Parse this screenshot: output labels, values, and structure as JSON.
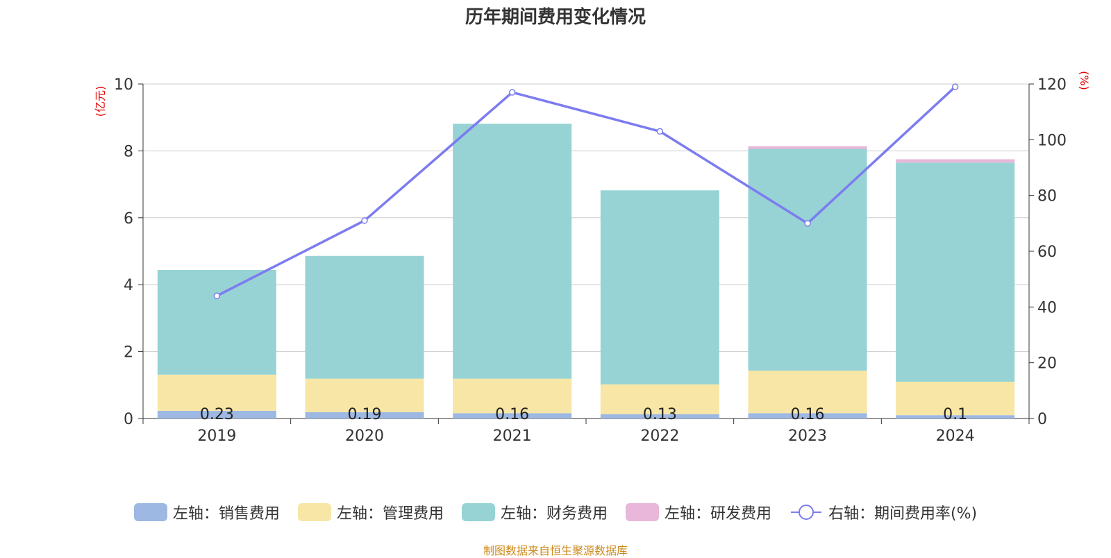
{
  "title": "历年期间费用变化情况",
  "source": "制图数据来自恒生聚源数据库",
  "chart_data": {
    "type": "bar",
    "categories": [
      "2019",
      "2020",
      "2021",
      "2022",
      "2023",
      "2024"
    ],
    "left_axis": {
      "unit": "(亿元)",
      "range": [
        0,
        10
      ],
      "ticks": [
        "0",
        "2",
        "4",
        "6",
        "8",
        "10"
      ]
    },
    "right_axis": {
      "unit": "(%)",
      "range": [
        0,
        120
      ],
      "ticks": [
        "0",
        "20",
        "40",
        "60",
        "80",
        "100",
        "120"
      ]
    },
    "series": [
      {
        "name": "左轴：销售费用",
        "kind": "bar",
        "color": "#9db8e3",
        "values": [
          0.23,
          0.19,
          0.16,
          0.13,
          0.16,
          0.1
        ],
        "labels": [
          "0.23",
          "0.19",
          "0.16",
          "0.13",
          "0.16",
          "0.1"
        ]
      },
      {
        "name": "左轴：管理费用",
        "kind": "bar",
        "color": "#f8e6a6",
        "values": [
          1.08,
          1.0,
          1.03,
          0.89,
          1.27,
          1.0
        ]
      },
      {
        "name": "左轴：财务费用",
        "kind": "bar",
        "color": "#97d3d4",
        "values": [
          3.13,
          3.67,
          7.62,
          5.8,
          6.63,
          6.55
        ]
      },
      {
        "name": "左轴：研发费用",
        "kind": "bar",
        "color": "#e8b7d9",
        "values": [
          0,
          0,
          0,
          0,
          0.08,
          0.1
        ]
      },
      {
        "name": "右轴：期间费用率(%)",
        "kind": "line",
        "color": "#7c7cf0",
        "values": [
          44,
          71,
          117,
          103,
          70,
          119
        ]
      }
    ],
    "grid": true,
    "legend_position": "bottom"
  }
}
